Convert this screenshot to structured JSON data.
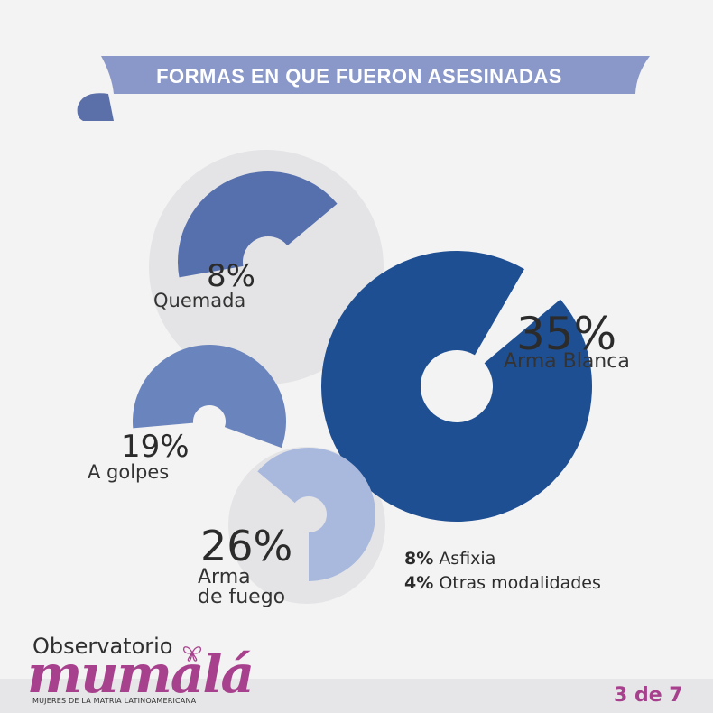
{
  "title": "FORMAS EN QUE FUERON ASESINADAS",
  "colors": {
    "background": "#f3f3f4",
    "banner": "#8a98c9",
    "banner_shadow": "#5b6fa8",
    "bubble": "#e4e4e6",
    "accent": "#a8418d"
  },
  "chart_data": {
    "type": "pie",
    "title": "FORMAS EN QUE FUERON ASESINADAS",
    "slices": [
      {
        "pct_label": "8%",
        "label": "Quemada",
        "value": 8,
        "color": "#5670ae"
      },
      {
        "pct_label": "35%",
        "label": "Arma Blanca",
        "value": 35,
        "color": "#1f4f93"
      },
      {
        "pct_label": "19%",
        "label": "A golpes",
        "value": 19,
        "color": "#6a84bd"
      },
      {
        "pct_label": "26%",
        "label": "Arma de fuego",
        "label_lines": [
          "Arma",
          "de fuego"
        ],
        "value": 26,
        "color": "#a9b9de"
      }
    ],
    "others": [
      {
        "pct_label": "8%",
        "label": "Asfixia",
        "value": 8
      },
      {
        "pct_label": "4%",
        "label": "Otras modalidades",
        "value": 4
      }
    ]
  },
  "logo": {
    "top": "Observatorio",
    "main": "mumalá",
    "sub": "MUJERES DE LA MATRIA LATINOAMERICANA"
  },
  "pagination": "3 de 7"
}
